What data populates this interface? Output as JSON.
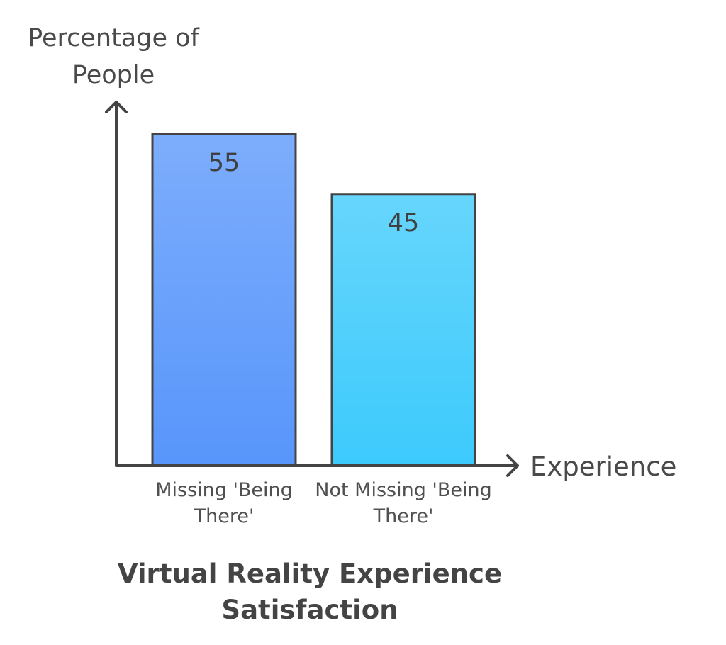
{
  "chart_data": {
    "type": "bar",
    "title": "Virtual Reality Experience Satisfaction",
    "y_label": "Percentage of People",
    "x_label": "Experience",
    "categories": [
      "Missing 'Being There'",
      "Not Missing 'Being There'"
    ],
    "values": [
      55,
      45
    ],
    "colors": [
      "#5896fb",
      "#3ccafc"
    ],
    "ylim": [
      0,
      60
    ]
  }
}
